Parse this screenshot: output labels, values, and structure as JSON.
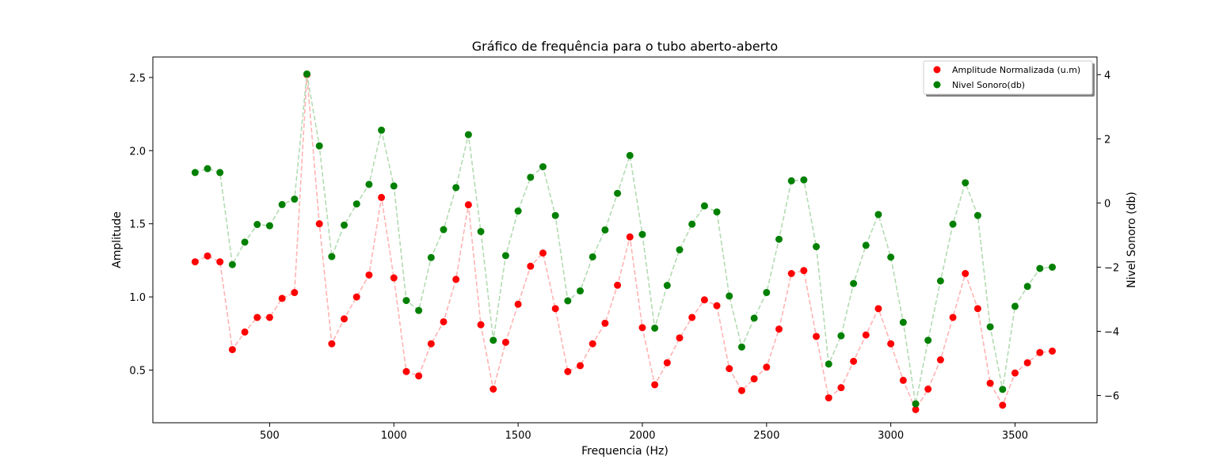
{
  "chart_data": {
    "type": "scatter",
    "title": "Gráfico de frequência para o tubo aberto-aberto",
    "xlabel": "Frequencia (Hz)",
    "ylabel": "Amplitude",
    "y2label": "Nivel Sonoro (db)",
    "xlim": [
      30,
      3830
    ],
    "ylim": [
      0.14,
      2.64
    ],
    "y2lim": [
      -6.85,
      4.55
    ],
    "x_ticks": [
      500,
      1000,
      1500,
      2000,
      2500,
      3000,
      3500
    ],
    "y_ticks": [
      0.5,
      1.0,
      1.5,
      2.0,
      2.5
    ],
    "y2_ticks": [
      -6,
      -4,
      -2,
      0,
      2,
      4
    ],
    "x_tick_labels": [
      "500",
      "1000",
      "1500",
      "2000",
      "2500",
      "3000",
      "3500"
    ],
    "y_tick_labels": [
      "0.5",
      "1.0",
      "1.5",
      "2.0",
      "2.5"
    ],
    "y2_tick_labels": [
      "−6",
      "−4",
      "−2",
      "0",
      "2",
      "4"
    ],
    "grid": false,
    "legend_position": "top-right",
    "x": [
      200,
      250,
      300,
      350,
      400,
      450,
      500,
      550,
      600,
      650,
      700,
      750,
      800,
      850,
      900,
      950,
      1000,
      1050,
      1100,
      1150,
      1200,
      1250,
      1300,
      1350,
      1400,
      1450,
      1500,
      1550,
      1600,
      1650,
      1700,
      1750,
      1800,
      1850,
      1900,
      1950,
      2000,
      2050,
      2100,
      2150,
      2200,
      2250,
      2300,
      2350,
      2400,
      2450,
      2500,
      2550,
      2600,
      2650,
      2700,
      2750,
      2800,
      2850,
      2900,
      2950,
      3000,
      3050,
      3100,
      3150,
      3200,
      3250,
      3300,
      3350,
      3400,
      3450,
      3500,
      3550,
      3600,
      3650
    ],
    "series": [
      {
        "name": "Amplitude Normalizada (u.m)",
        "axis": "left",
        "marker_color": "#ff0000",
        "line_color": "#ffb3b3",
        "values": [
          1.24,
          1.28,
          1.24,
          0.64,
          0.76,
          0.86,
          0.86,
          0.99,
          1.03,
          2.52,
          1.5,
          0.68,
          0.85,
          1.0,
          1.15,
          1.68,
          1.13,
          0.49,
          0.46,
          0.68,
          0.83,
          1.12,
          1.63,
          0.81,
          0.37,
          0.69,
          0.95,
          1.21,
          1.3,
          0.92,
          0.49,
          0.53,
          0.68,
          0.82,
          1.08,
          1.41,
          0.79,
          0.4,
          0.55,
          0.72,
          0.86,
          0.98,
          0.94,
          0.51,
          0.36,
          0.44,
          0.52,
          0.78,
          1.16,
          1.18,
          0.73,
          0.31,
          0.38,
          0.56,
          0.74,
          0.92,
          0.68,
          0.43,
          0.23,
          0.37,
          0.57,
          0.86,
          1.16,
          0.92,
          0.41,
          0.26,
          0.48,
          0.55,
          0.62,
          0.63
        ]
      },
      {
        "name": "Nivel Sonoro(db)",
        "axis": "right",
        "marker_color": "#008000",
        "line_color": "#b3dbb3",
        "values": [
          0.95,
          1.07,
          0.95,
          -1.92,
          -1.22,
          -0.67,
          -0.71,
          -0.05,
          0.12,
          4.02,
          1.78,
          -1.67,
          -0.69,
          -0.03,
          0.58,
          2.27,
          0.53,
          -3.04,
          -3.35,
          -1.7,
          -0.83,
          0.48,
          2.13,
          -0.89,
          -4.28,
          -1.64,
          -0.25,
          0.8,
          1.13,
          -0.39,
          -3.05,
          -2.74,
          -1.68,
          -0.84,
          0.3,
          1.48,
          -0.98,
          -3.9,
          -2.57,
          -1.46,
          -0.66,
          -0.09,
          -0.28,
          -2.9,
          -4.49,
          -3.59,
          -2.79,
          -1.13,
          0.69,
          0.72,
          -1.36,
          -5.02,
          -4.14,
          -2.51,
          -1.32,
          -0.36,
          -1.69,
          -3.72,
          -6.26,
          -4.28,
          -2.43,
          -0.66,
          0.63,
          -0.39,
          -3.86,
          -5.81,
          -3.22,
          -2.6,
          -2.04,
          -2.0
        ]
      }
    ]
  }
}
